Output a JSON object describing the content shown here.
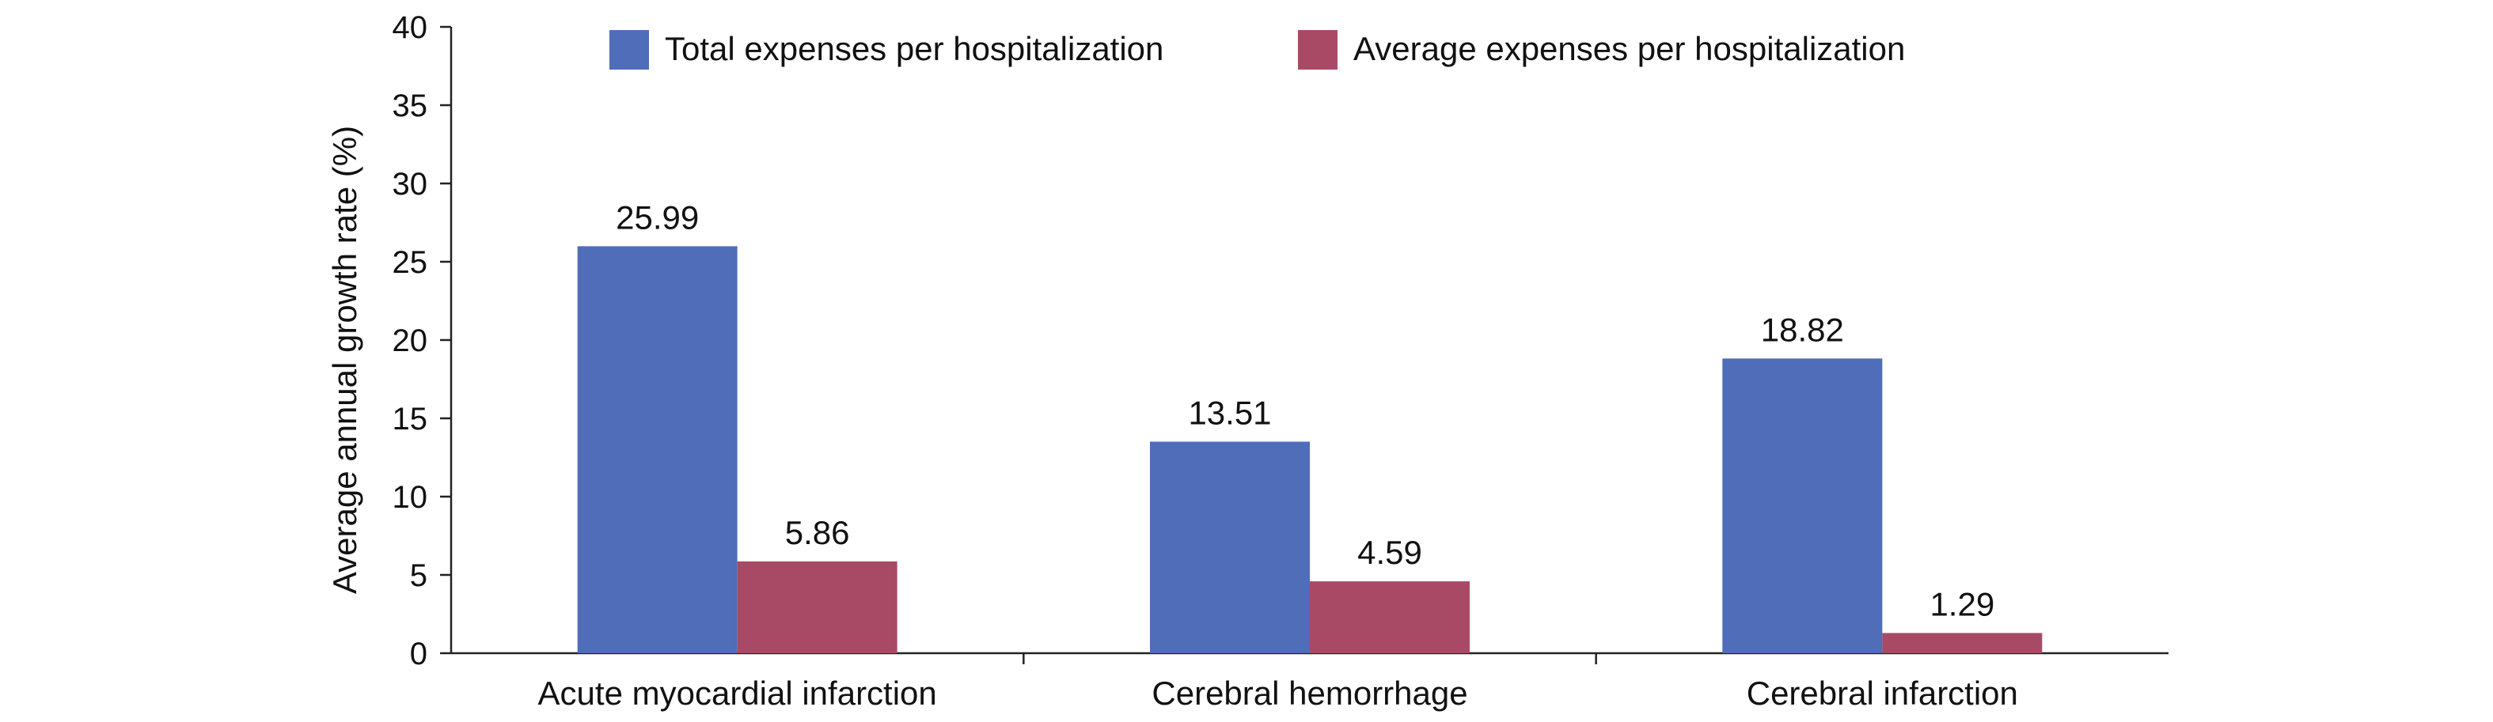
{
  "chart_data": {
    "type": "bar",
    "ylabel": "Average annual growth rate (%)",
    "ylim": [
      0,
      40
    ],
    "yticks": [
      0,
      5,
      10,
      15,
      20,
      25,
      30,
      35,
      40
    ],
    "categories": [
      "Acute myocardial infarction",
      "Cerebral hemorrhage",
      "Cerebral infarction"
    ],
    "series": [
      {
        "name": "Total expenses per hospitalization",
        "values": [
          25.99,
          13.51,
          18.82
        ],
        "labels": [
          "25.99",
          "13.51",
          "18.82"
        ],
        "color": "#4F6DB8"
      },
      {
        "name": "Average expenses per hospitalization",
        "values": [
          5.86,
          4.59,
          1.29
        ],
        "labels": [
          "5.86",
          "4.59",
          "1.29"
        ],
        "color": "#A84A66"
      }
    ],
    "grid": false,
    "legend_position": "top"
  }
}
